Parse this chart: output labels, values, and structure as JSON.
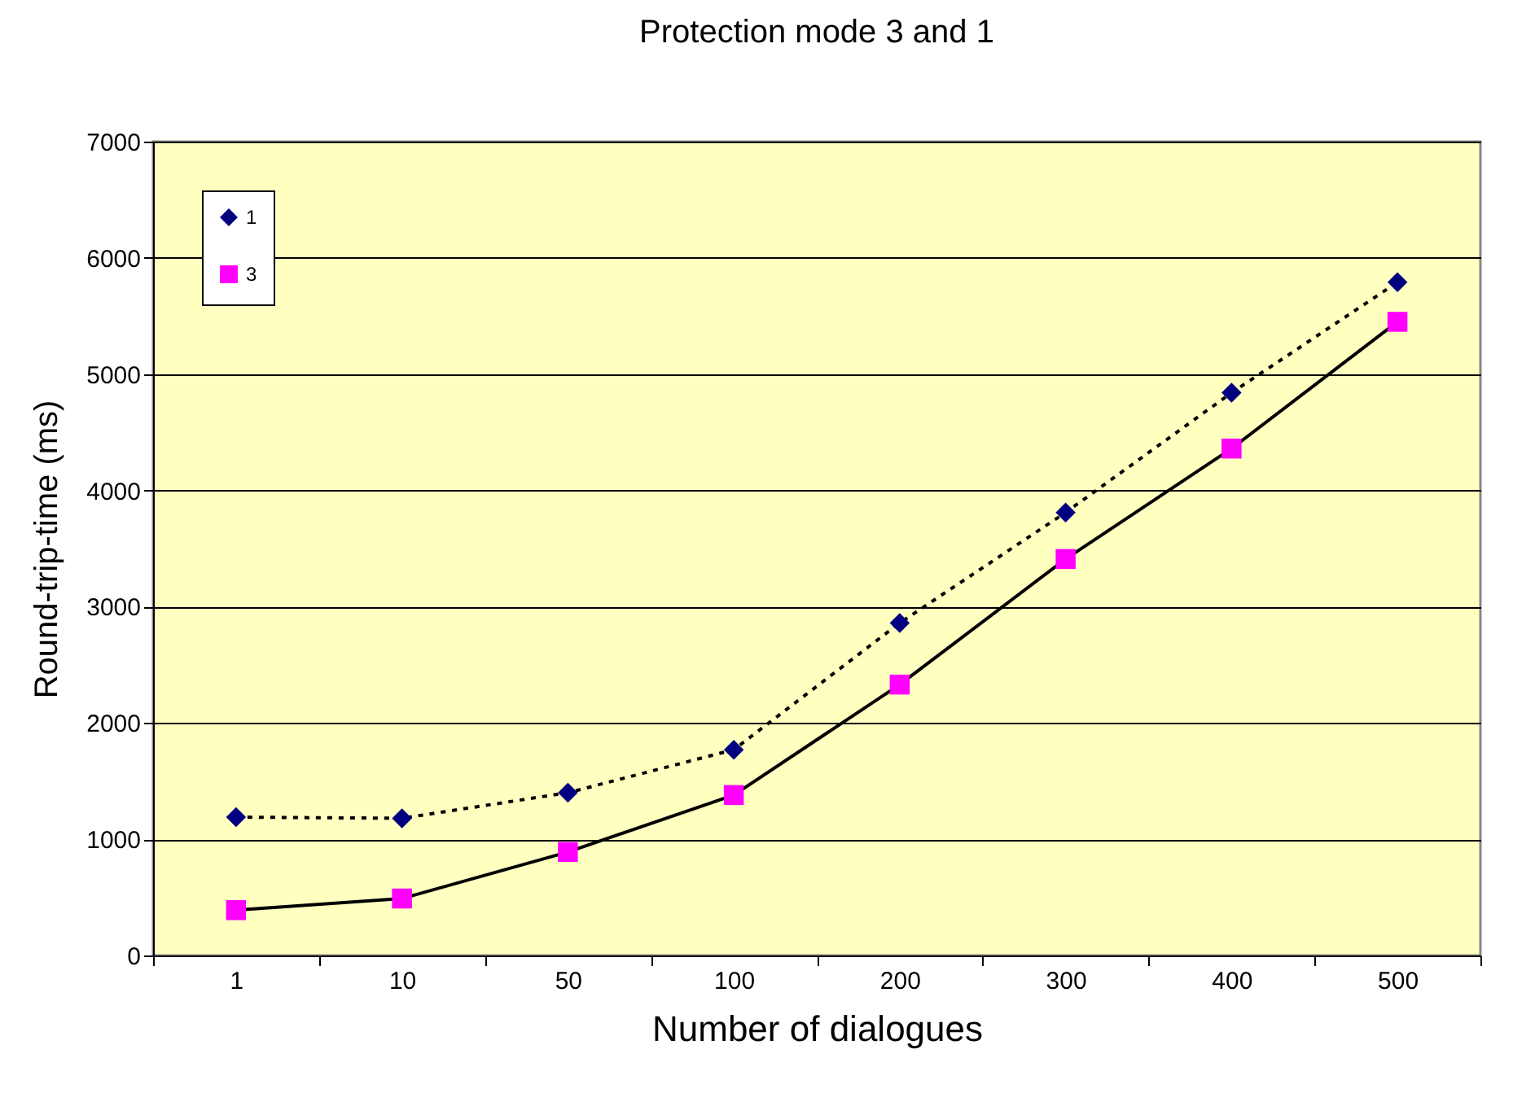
{
  "chart_data": {
    "type": "line",
    "title": "Protection mode 3 and 1",
    "xlabel": "Number of dialogues",
    "ylabel": "Round-trip-time (ms)",
    "categories": [
      "1",
      "10",
      "50",
      "100",
      "200",
      "300",
      "400",
      "500"
    ],
    "series": [
      {
        "name": "1",
        "color": "#000080",
        "marker": "diamond",
        "line_style": "dotted",
        "values": [
          1190,
          1180,
          1400,
          1770,
          2860,
          3810,
          4840,
          5790
        ]
      },
      {
        "name": "3",
        "color": "#ff00ff",
        "marker": "square",
        "line_style": "solid",
        "values": [
          390,
          490,
          890,
          1380,
          2330,
          3410,
          4360,
          5450
        ]
      }
    ],
    "ylim": [
      0,
      7000
    ],
    "yticks": [
      0,
      1000,
      2000,
      3000,
      4000,
      5000,
      6000,
      7000
    ],
    "grid": "y",
    "legend": "top left"
  }
}
